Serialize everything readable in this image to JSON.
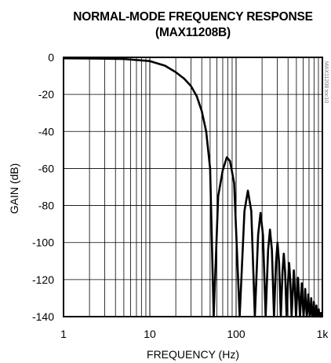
{
  "chart_data": {
    "type": "line",
    "title": "NORMAL-MODE FREQUENCY RESPONSE",
    "subtitle": "(MAX11208B)",
    "xlabel": "FREQUENCY (Hz)",
    "ylabel": "GAIN (dB)",
    "x_scale": "log",
    "xlim": [
      1,
      1000
    ],
    "ylim": [
      -140,
      0
    ],
    "x_ticks": [
      1,
      10,
      100,
      1000
    ],
    "x_tick_labels": [
      "1",
      "10",
      "100",
      "1k"
    ],
    "y_ticks": [
      0,
      -20,
      -40,
      -60,
      -80,
      -100,
      -120,
      -140
    ],
    "y_tick_labels": [
      "0",
      "-20",
      "-40",
      "-60",
      "-80",
      "-100",
      "-120",
      "-140"
    ],
    "grid": true,
    "legend": "none",
    "figure_code": "MAX11208 toc10",
    "line_color": "#000000",
    "series": [
      {
        "filter": "sinc",
        "null_frequency_hz": 55,
        "x": [
          1,
          2,
          5,
          10,
          15,
          20,
          25,
          30,
          35,
          40,
          45,
          50,
          55,
          62,
          70,
          78,
          85,
          95,
          110,
          125,
          137,
          150,
          165,
          180,
          192,
          205,
          220,
          235,
          247,
          260,
          275,
          290,
          302,
          315,
          330,
          345,
          357,
          370,
          385,
          400,
          412,
          425,
          440,
          455,
          467,
          480,
          495,
          510,
          522,
          535,
          550,
          565,
          577,
          590,
          605,
          620,
          632,
          645,
          660,
          675,
          687,
          700,
          715,
          730,
          742,
          755,
          770,
          785,
          797,
          810,
          825,
          840,
          852,
          865,
          880,
          895,
          907,
          920,
          935,
          950,
          962,
          975,
          990,
          1000
        ],
        "y": [
          -0.5,
          -0.6,
          -0.9,
          -2.0,
          -4.5,
          -8.0,
          -11.5,
          -15.5,
          -21.0,
          -29.0,
          -40.0,
          -60.0,
          -140.0,
          -75.0,
          -61.0,
          -54.0,
          -56.0,
          -68.0,
          -140.0,
          -83.0,
          -72.0,
          -83.0,
          -140.0,
          -96.0,
          -84.0,
          -96.0,
          -140.0,
          -104.0,
          -93.0,
          -104.0,
          -140.0,
          -111.0,
          -100.0,
          -111.0,
          -140.0,
          -116.0,
          -106.0,
          -116.0,
          -140.0,
          -121.0,
          -111.0,
          -121.0,
          -140.0,
          -125.0,
          -115.0,
          -125.0,
          -140.0,
          -128.0,
          -119.0,
          -128.0,
          -140.0,
          -131.0,
          -122.0,
          -131.0,
          -140.0,
          -133.0,
          -125.0,
          -133.0,
          -140.0,
          -135.0,
          -128.0,
          -135.0,
          -140.0,
          -137.0,
          -130.0,
          -137.0,
          -140.0,
          -138.5,
          -132.0,
          -138.5,
          -140.0,
          -139.0,
          -134.0,
          -139.0,
          -140.0,
          -139.5,
          -136.0,
          -139.5,
          -140.0,
          -140.0,
          -138.0,
          -140.0,
          -140.0,
          -140.0
        ]
      }
    ]
  }
}
